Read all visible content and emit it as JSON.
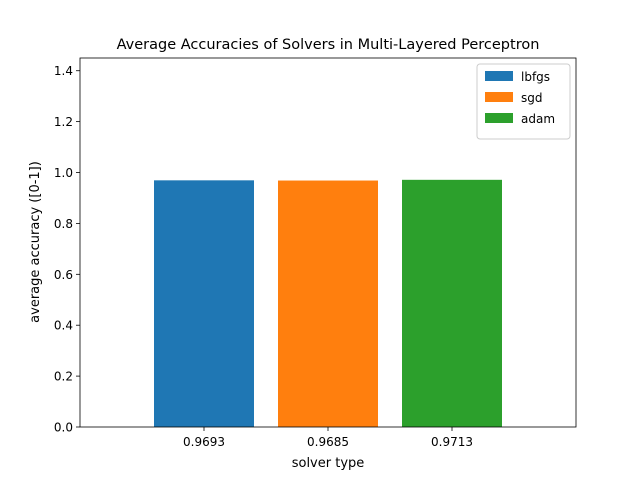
{
  "chart_data": {
    "type": "bar",
    "title": "Average Accuracies of Solvers in Multi-Layered Perceptron",
    "xlabel": "solver type",
    "ylabel": "average accuracy ([0-1])",
    "ylim": [
      0,
      1.45
    ],
    "yticks": [
      "0.0",
      "0.2",
      "0.4",
      "0.6",
      "0.8",
      "1.0",
      "1.2",
      "1.4"
    ],
    "categories": [
      "0.9693",
      "0.9685",
      "0.9713"
    ],
    "series": [
      {
        "name": "lbfgs",
        "value": 0.9693,
        "color": "#1f77b4"
      },
      {
        "name": "sgd",
        "value": 0.9685,
        "color": "#ff7f0e"
      },
      {
        "name": "adam",
        "value": 0.9713,
        "color": "#2ca02c"
      }
    ],
    "grid": false,
    "legend": "top-right"
  }
}
